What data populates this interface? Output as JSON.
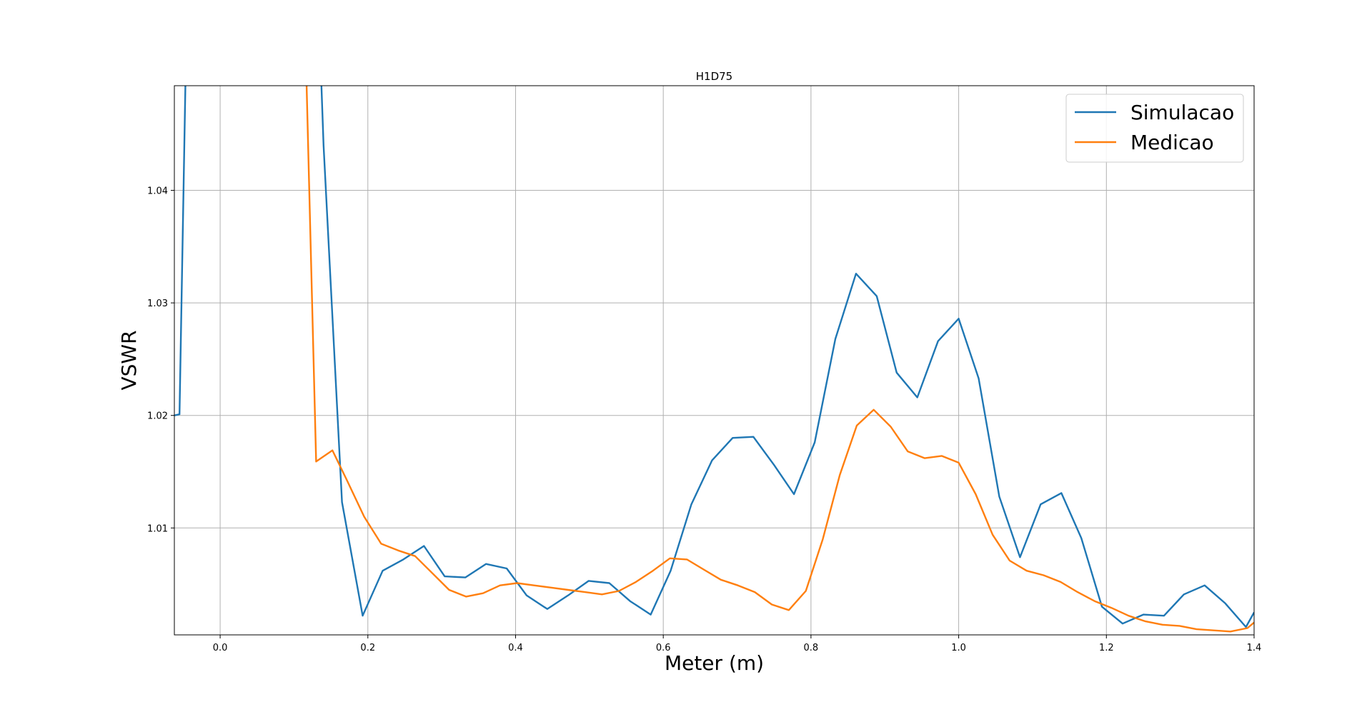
{
  "chart_data": {
    "type": "line",
    "title": "H1D75",
    "xlabel": "Meter (m)",
    "ylabel": "VSWR",
    "xlim": [
      -0.062,
      1.4
    ],
    "ylim": [
      1.0005,
      1.0493
    ],
    "xticks": [
      0.0,
      0.2,
      0.4,
      0.6,
      0.8,
      1.0,
      1.2,
      1.4
    ],
    "xtick_labels": [
      "0.0",
      "0.2",
      "0.4",
      "0.6",
      "0.8",
      "1.0",
      "1.2",
      "1.4"
    ],
    "yticks": [
      1.01,
      1.02,
      1.03,
      1.04
    ],
    "ytick_labels": [
      "1.01",
      "1.02",
      "1.03",
      "1.04"
    ],
    "grid": true,
    "legend_position": "top-right",
    "series": [
      {
        "name": "Simulacao",
        "color": "#1f77b4",
        "x": [
          -0.062,
          -0.055,
          -0.047,
          0.137,
          0.14,
          0.165,
          0.193,
          0.22,
          0.248,
          0.276,
          0.304,
          0.332,
          0.36,
          0.388,
          0.415,
          0.443,
          0.471,
          0.499,
          0.527,
          0.555,
          0.583,
          0.61,
          0.638,
          0.666,
          0.694,
          0.722,
          0.75,
          0.777,
          0.805,
          0.833,
          0.861,
          0.889,
          0.916,
          0.944,
          0.972,
          1.0,
          1.027,
          1.055,
          1.083,
          1.111,
          1.139,
          1.166,
          1.194,
          1.222,
          1.25,
          1.278,
          1.305,
          1.333,
          1.361,
          1.389,
          1.4
        ],
        "y": [
          1.02,
          1.0201,
          1.0495,
          1.0495,
          1.044,
          1.0123,
          1.0022,
          1.0062,
          1.0072,
          1.0084,
          1.0057,
          1.0056,
          1.0068,
          1.0064,
          1.004,
          1.0028,
          1.004,
          1.0053,
          1.0051,
          1.0035,
          1.0023,
          1.0062,
          1.0121,
          1.016,
          1.018,
          1.0181,
          1.0156,
          1.013,
          1.0176,
          1.0268,
          1.0326,
          1.0306,
          1.0238,
          1.0216,
          1.0266,
          1.0286,
          1.0233,
          1.0128,
          1.0074,
          1.0121,
          1.0131,
          1.0091,
          1.003,
          1.0015,
          1.0023,
          1.0022,
          1.0041,
          1.0049,
          1.0033,
          1.0012,
          1.0025
        ]
      },
      {
        "name": "Medicao",
        "color": "#ff7f0e",
        "x": [
          0.117,
          0.13,
          0.152,
          0.172,
          0.195,
          0.218,
          0.241,
          0.264,
          0.287,
          0.31,
          0.333,
          0.356,
          0.379,
          0.402,
          0.425,
          0.448,
          0.471,
          0.494,
          0.517,
          0.54,
          0.563,
          0.586,
          0.609,
          0.632,
          0.655,
          0.678,
          0.701,
          0.724,
          0.747,
          0.77,
          0.793,
          0.816,
          0.839,
          0.862,
          0.885,
          0.908,
          0.931,
          0.954,
          0.977,
          1.0,
          1.023,
          1.046,
          1.069,
          1.092,
          1.115,
          1.138,
          1.161,
          1.184,
          1.207,
          1.23,
          1.253,
          1.276,
          1.299,
          1.322,
          1.345,
          1.368,
          1.391,
          1.4
        ],
        "y": [
          1.0495,
          1.0159,
          1.0169,
          1.0142,
          1.011,
          1.0086,
          1.008,
          1.0075,
          1.006,
          1.0045,
          1.0039,
          1.0042,
          1.0049,
          1.0051,
          1.0049,
          1.0047,
          1.0045,
          1.0043,
          1.0041,
          1.0044,
          1.0052,
          1.0062,
          1.0073,
          1.0072,
          1.0063,
          1.0054,
          1.0049,
          1.0043,
          1.0032,
          1.0027,
          1.0044,
          1.009,
          1.0147,
          1.0191,
          1.0205,
          1.019,
          1.0168,
          1.0162,
          1.0164,
          1.0158,
          1.013,
          1.0094,
          1.0071,
          1.0062,
          1.0058,
          1.0052,
          1.0043,
          1.0035,
          1.0029,
          1.0022,
          1.0017,
          1.0014,
          1.0013,
          1.001,
          1.0009,
          1.0008,
          1.0011,
          1.0016
        ]
      }
    ]
  }
}
